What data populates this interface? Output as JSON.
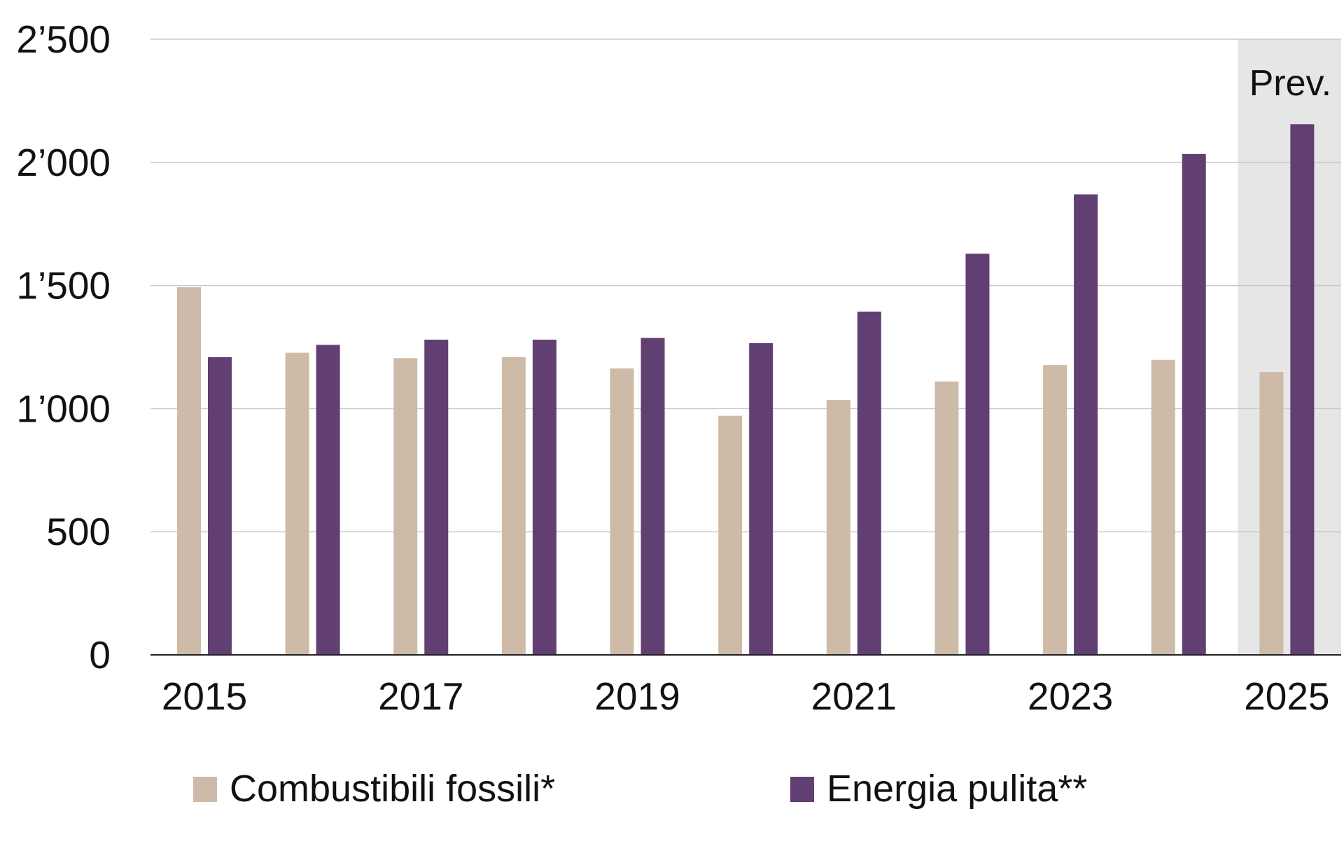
{
  "chart_data": {
    "type": "bar",
    "title": "",
    "xlabel": "",
    "ylabel": "",
    "ylim": [
      0,
      2500
    ],
    "yticks": [
      0,
      500,
      1000,
      1500,
      2000,
      2500
    ],
    "ytick_labels": [
      "0",
      "500",
      "1’000",
      "1’500",
      "2’000",
      "2’500"
    ],
    "categories": [
      "2015",
      "2016",
      "2017",
      "2018",
      "2019",
      "2020",
      "2021",
      "2022",
      "2023",
      "2024",
      "2025"
    ],
    "xtick_labels": [
      "2015",
      "",
      "2017",
      "",
      "2019",
      "",
      "2021",
      "",
      "2023",
      "",
      "2025"
    ],
    "grid": true,
    "legend_position": "bottom",
    "forecast_label": "Prev.",
    "forecast_categories": [
      "2025"
    ],
    "series": [
      {
        "name": "Combustibili fossili*",
        "color": "#cdbba8",
        "values": [
          1493,
          1227,
          1205,
          1209,
          1163,
          971,
          1035,
          1110,
          1177,
          1198,
          1149
        ]
      },
      {
        "name": "Energia pulita**",
        "color": "#613f73",
        "values": [
          1209,
          1259,
          1280,
          1280,
          1287,
          1266,
          1394,
          1629,
          1870,
          2034,
          2155
        ]
      }
    ]
  }
}
